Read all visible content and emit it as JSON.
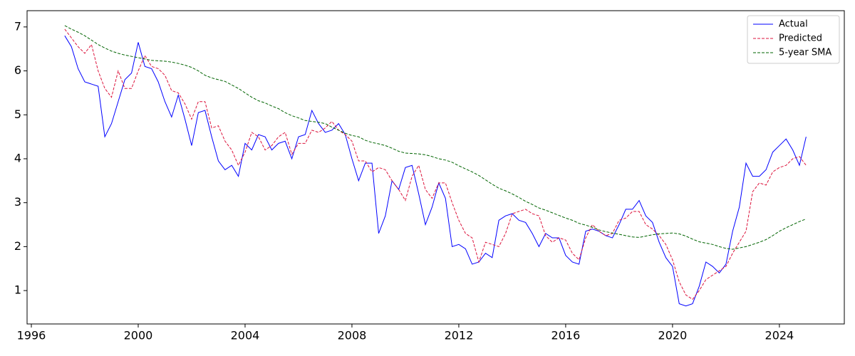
{
  "chart_data": {
    "type": "line",
    "x": [
      1997.25,
      1997.5,
      1997.75,
      1998,
      1998.25,
      1998.5,
      1998.75,
      1999,
      1999.25,
      1999.5,
      1999.75,
      2000,
      2000.25,
      2000.5,
      2000.75,
      2001,
      2001.25,
      2001.5,
      2001.75,
      2002,
      2002.25,
      2002.5,
      2002.75,
      2003,
      2003.25,
      2003.5,
      2003.75,
      2004,
      2004.25,
      2004.5,
      2004.75,
      2005,
      2005.25,
      2005.5,
      2005.75,
      2006,
      2006.25,
      2006.5,
      2006.75,
      2007,
      2007.25,
      2007.5,
      2007.75,
      2008,
      2008.25,
      2008.5,
      2008.75,
      2009,
      2009.25,
      2009.5,
      2009.75,
      2010,
      2010.25,
      2010.5,
      2010.75,
      2011,
      2011.25,
      2011.5,
      2011.75,
      2012,
      2012.25,
      2012.5,
      2012.75,
      2013,
      2013.25,
      2013.5,
      2013.75,
      2014,
      2014.25,
      2014.5,
      2014.75,
      2015,
      2015.25,
      2015.5,
      2015.75,
      2016,
      2016.25,
      2016.5,
      2016.75,
      2017,
      2017.25,
      2017.5,
      2017.75,
      2018,
      2018.25,
      2018.5,
      2018.75,
      2019,
      2019.25,
      2019.5,
      2019.75,
      2020,
      2020.25,
      2020.5,
      2020.75,
      2021,
      2021.25,
      2021.5,
      2021.75,
      2022,
      2022.25,
      2022.5,
      2022.75,
      2023,
      2023.25,
      2023.5,
      2023.75,
      2024,
      2024.25,
      2024.5,
      2024.75,
      2025
    ],
    "series": [
      {
        "name": "Actual",
        "color": "#0000ff",
        "dash": false,
        "values": [
          6.8,
          6.55,
          6.05,
          5.75,
          5.7,
          5.65,
          4.5,
          4.8,
          5.3,
          5.8,
          5.95,
          6.65,
          6.1,
          6.05,
          5.75,
          5.3,
          4.95,
          5.45,
          4.9,
          4.3,
          5.05,
          5.1,
          4.5,
          3.95,
          3.75,
          3.85,
          3.6,
          4.35,
          4.2,
          4.55,
          4.5,
          4.2,
          4.35,
          4.4,
          4.0,
          4.5,
          4.55,
          5.1,
          4.8,
          4.6,
          4.65,
          4.8,
          4.55,
          4.0,
          3.5,
          3.9,
          3.9,
          2.3,
          2.7,
          3.5,
          3.3,
          3.8,
          3.85,
          3.2,
          2.5,
          2.9,
          3.45,
          3.1,
          2.0,
          2.05,
          1.95,
          1.6,
          1.65,
          1.85,
          1.75,
          2.6,
          2.7,
          2.75,
          2.6,
          2.55,
          2.3,
          2.0,
          2.3,
          2.2,
          2.2,
          1.8,
          1.65,
          1.6,
          2.35,
          2.4,
          2.35,
          2.25,
          2.2,
          2.5,
          2.85,
          2.85,
          3.05,
          2.7,
          2.55,
          2.1,
          1.75,
          1.55,
          0.7,
          0.65,
          0.7,
          1.1,
          1.65,
          1.55,
          1.4,
          1.6,
          2.35,
          2.9,
          3.9,
          3.6,
          3.6,
          3.75,
          4.15,
          4.3,
          4.45,
          4.2,
          3.85,
          4.5
        ]
      },
      {
        "name": "Predicted",
        "color": "#dc143c",
        "dash": true,
        "values": [
          6.95,
          6.75,
          6.55,
          6.4,
          6.6,
          6.0,
          5.6,
          5.4,
          6.0,
          5.6,
          5.6,
          6.0,
          6.35,
          6.1,
          6.05,
          5.9,
          5.55,
          5.5,
          5.25,
          4.9,
          5.3,
          5.3,
          4.7,
          4.75,
          4.4,
          4.2,
          3.85,
          4.15,
          4.6,
          4.5,
          4.2,
          4.3,
          4.5,
          4.6,
          4.1,
          4.35,
          4.35,
          4.65,
          4.6,
          4.7,
          4.85,
          4.65,
          4.55,
          4.4,
          3.95,
          3.95,
          3.7,
          3.8,
          3.75,
          3.5,
          3.3,
          3.05,
          3.6,
          3.85,
          3.3,
          3.1,
          3.45,
          3.45,
          3.0,
          2.6,
          2.3,
          2.2,
          1.65,
          2.1,
          2.05,
          2.0,
          2.3,
          2.75,
          2.8,
          2.85,
          2.75,
          2.7,
          2.25,
          2.1,
          2.2,
          2.15,
          1.85,
          1.7,
          2.2,
          2.5,
          2.35,
          2.25,
          2.3,
          2.6,
          2.65,
          2.8,
          2.8,
          2.5,
          2.4,
          2.25,
          2.05,
          1.7,
          1.2,
          0.9,
          0.8,
          1.0,
          1.25,
          1.35,
          1.45,
          1.55,
          1.85,
          2.1,
          2.35,
          3.25,
          3.45,
          3.4,
          3.7,
          3.8,
          3.85,
          4.0,
          4.05,
          3.85
        ]
      },
      {
        "name": "5-year SMA",
        "color": "#006400",
        "dash": true,
        "values": [
          7.03,
          6.95,
          6.88,
          6.8,
          6.7,
          6.6,
          6.52,
          6.45,
          6.4,
          6.36,
          6.33,
          6.3,
          6.27,
          6.24,
          6.23,
          6.22,
          6.2,
          6.17,
          6.13,
          6.08,
          6.0,
          5.9,
          5.84,
          5.8,
          5.76,
          5.68,
          5.6,
          5.5,
          5.4,
          5.32,
          5.27,
          5.2,
          5.14,
          5.05,
          4.98,
          4.93,
          4.87,
          4.85,
          4.83,
          4.8,
          4.72,
          4.65,
          4.58,
          4.53,
          4.5,
          4.42,
          4.37,
          4.34,
          4.3,
          4.24,
          4.17,
          4.13,
          4.12,
          4.11,
          4.09,
          4.05,
          4.0,
          3.97,
          3.92,
          3.84,
          3.77,
          3.7,
          3.62,
          3.52,
          3.42,
          3.33,
          3.27,
          3.2,
          3.12,
          3.03,
          2.96,
          2.88,
          2.83,
          2.77,
          2.71,
          2.65,
          2.6,
          2.53,
          2.49,
          2.44,
          2.38,
          2.34,
          2.31,
          2.28,
          2.25,
          2.22,
          2.21,
          2.24,
          2.27,
          2.29,
          2.3,
          2.31,
          2.29,
          2.24,
          2.17,
          2.11,
          2.08,
          2.05,
          2.0,
          1.96,
          1.94,
          1.97,
          2.0,
          2.05,
          2.1,
          2.16,
          2.25,
          2.35,
          2.43,
          2.5,
          2.57,
          2.63
        ]
      }
    ],
    "xlim": [
      1995.84,
      2026.43
    ],
    "xticks": [
      1996,
      2000,
      2004,
      2008,
      2012,
      2016,
      2020,
      2024
    ],
    "ylim": [
      0.24,
      7.37
    ],
    "yticks": [
      1,
      2,
      3,
      4,
      5,
      6,
      7
    ],
    "grid": false,
    "legend": "upper right"
  }
}
